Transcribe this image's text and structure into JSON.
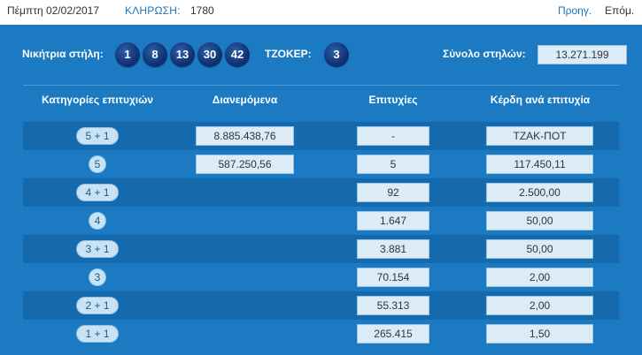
{
  "header": {
    "date": "Πέμπτη 02/02/2017",
    "draw_label": "ΚΛΗΡΩΣΗ:",
    "draw_number": "1780",
    "prev_label": "Προηγ.",
    "next_label": "Επόμ."
  },
  "winning": {
    "label": "Νικήτρια στήλη:",
    "numbers": [
      "1",
      "8",
      "13",
      "30",
      "42"
    ],
    "joker_label": "ΤΖΟΚΕΡ:",
    "joker": "3",
    "total_label": "Σύνολο στηλών:",
    "total": "13.271.199"
  },
  "table": {
    "headers": [
      "Κατηγορίες επιτυχιών",
      "Διανεμόμενα",
      "Επιτυχίες",
      "Κέρδη ανά επιτυχία"
    ],
    "rows": [
      {
        "category": "5 + 1",
        "distributed": "8.885.438,76",
        "winners": "-",
        "prize": "ΤΖΑΚ-ΠΟΤ"
      },
      {
        "category": "5",
        "distributed": "587.250,56",
        "winners": "5",
        "prize": "117.450,11"
      },
      {
        "category": "4 + 1",
        "distributed": "",
        "winners": "92",
        "prize": "2.500,00"
      },
      {
        "category": "4",
        "distributed": "",
        "winners": "1.647",
        "prize": "50,00"
      },
      {
        "category": "3 + 1",
        "distributed": "",
        "winners": "3.881",
        "prize": "50,00"
      },
      {
        "category": "3",
        "distributed": "",
        "winners": "70.154",
        "prize": "2,00"
      },
      {
        "category": "2 + 1",
        "distributed": "",
        "winners": "55.313",
        "prize": "2,00"
      },
      {
        "category": "1 + 1",
        "distributed": "",
        "winners": "265.415",
        "prize": "1,50"
      }
    ]
  },
  "colors": {
    "panel": "#1b7ac2",
    "row_dark": "#1569ad",
    "ball": "#0f3274",
    "cell": "#dbecf7",
    "link": "#1c74bb"
  }
}
